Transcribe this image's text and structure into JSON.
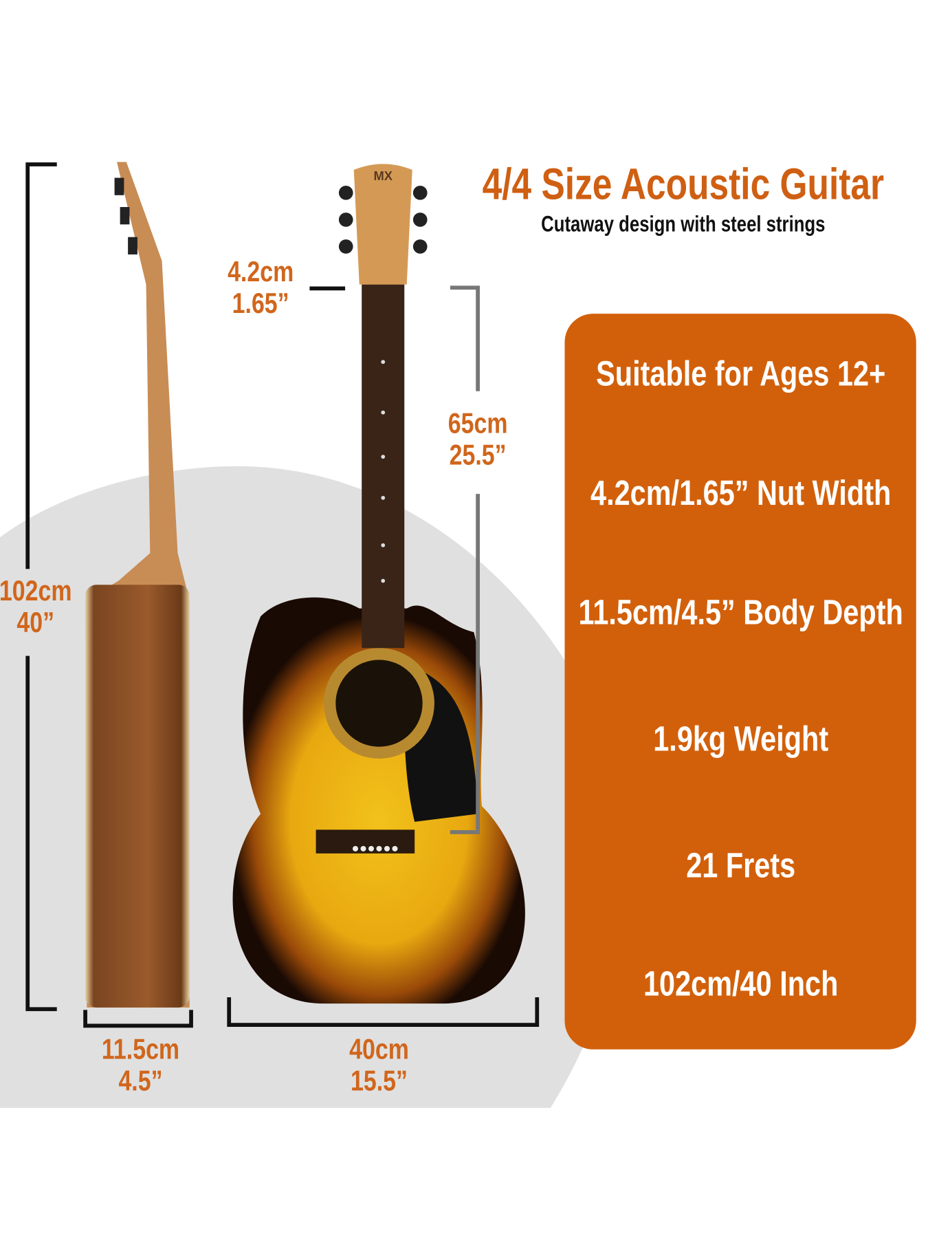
{
  "header": {
    "title": "4/4 Size Acoustic Guitar",
    "subtitle": "Cutaway design with steel strings"
  },
  "features": [
    "Suitable for Ages 12+",
    "4.2cm/1.65” Nut Width",
    "11.5cm/4.5” Body Depth",
    "1.9kg Weight",
    "21 Frets",
    "102cm/40 Inch"
  ],
  "dimensions": {
    "height": {
      "cm": "102cm",
      "in": "40”"
    },
    "nut": {
      "cm": "4.2cm",
      "in": "1.65”"
    },
    "scale": {
      "cm": "65cm",
      "in": "25.5”"
    },
    "depth": {
      "cm": "11.5cm",
      "in": "4.5”"
    },
    "width": {
      "cm": "40cm",
      "in": "15.5”"
    }
  },
  "logo": "MX",
  "colors": {
    "accent": "#d2600b",
    "label": "#d0661c",
    "backdrop": "#e0e0e0"
  }
}
